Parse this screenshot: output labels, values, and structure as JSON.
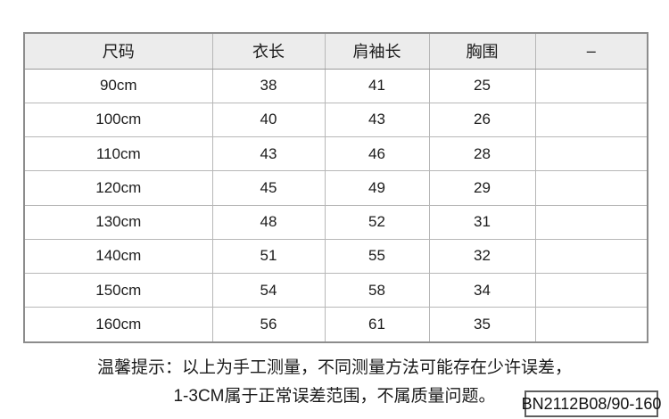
{
  "table": {
    "headers": [
      "尺码",
      "衣长",
      "肩袖长",
      "胸围",
      "–"
    ],
    "rows": [
      [
        "90cm",
        "38",
        "41",
        "25",
        ""
      ],
      [
        "100cm",
        "40",
        "43",
        "26",
        ""
      ],
      [
        "110cm",
        "43",
        "46",
        "28",
        ""
      ],
      [
        "120cm",
        "45",
        "49",
        "29",
        ""
      ],
      [
        "130cm",
        "48",
        "52",
        "31",
        ""
      ],
      [
        "140cm",
        "51",
        "55",
        "32",
        ""
      ],
      [
        "150cm",
        "54",
        "58",
        "34",
        ""
      ],
      [
        "160cm",
        "56",
        "61",
        "35",
        ""
      ]
    ]
  },
  "note": {
    "line1": "温馨提示：以上为手工测量，不同测量方法可能存在少许误差，",
    "line2": "1-3CM属于正常误差范围，不属质量问题。"
  },
  "product_code": "BN2112B08/90-160",
  "colors": {
    "header_bg": "#ececec",
    "border_outer": "#8c8c8c",
    "border_inner": "#b7b7b7",
    "text": "#1c1c1c",
    "box_border": "#5f5f5f"
  }
}
